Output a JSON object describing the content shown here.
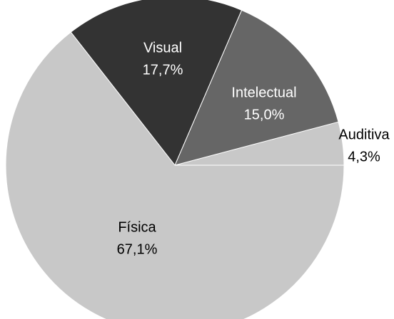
{
  "chart_data": {
    "type": "pie",
    "categories": [
      "Auditiva",
      "Intelectual",
      "Visual",
      "Física"
    ],
    "values": [
      4.3,
      15.0,
      17.7,
      67.1
    ],
    "value_labels": [
      "4,3%",
      "15,0%",
      "17,7%",
      "67,1%"
    ],
    "colors": [
      "#c8c8c8",
      "#666666",
      "#333333",
      "#c8c8c8"
    ]
  }
}
